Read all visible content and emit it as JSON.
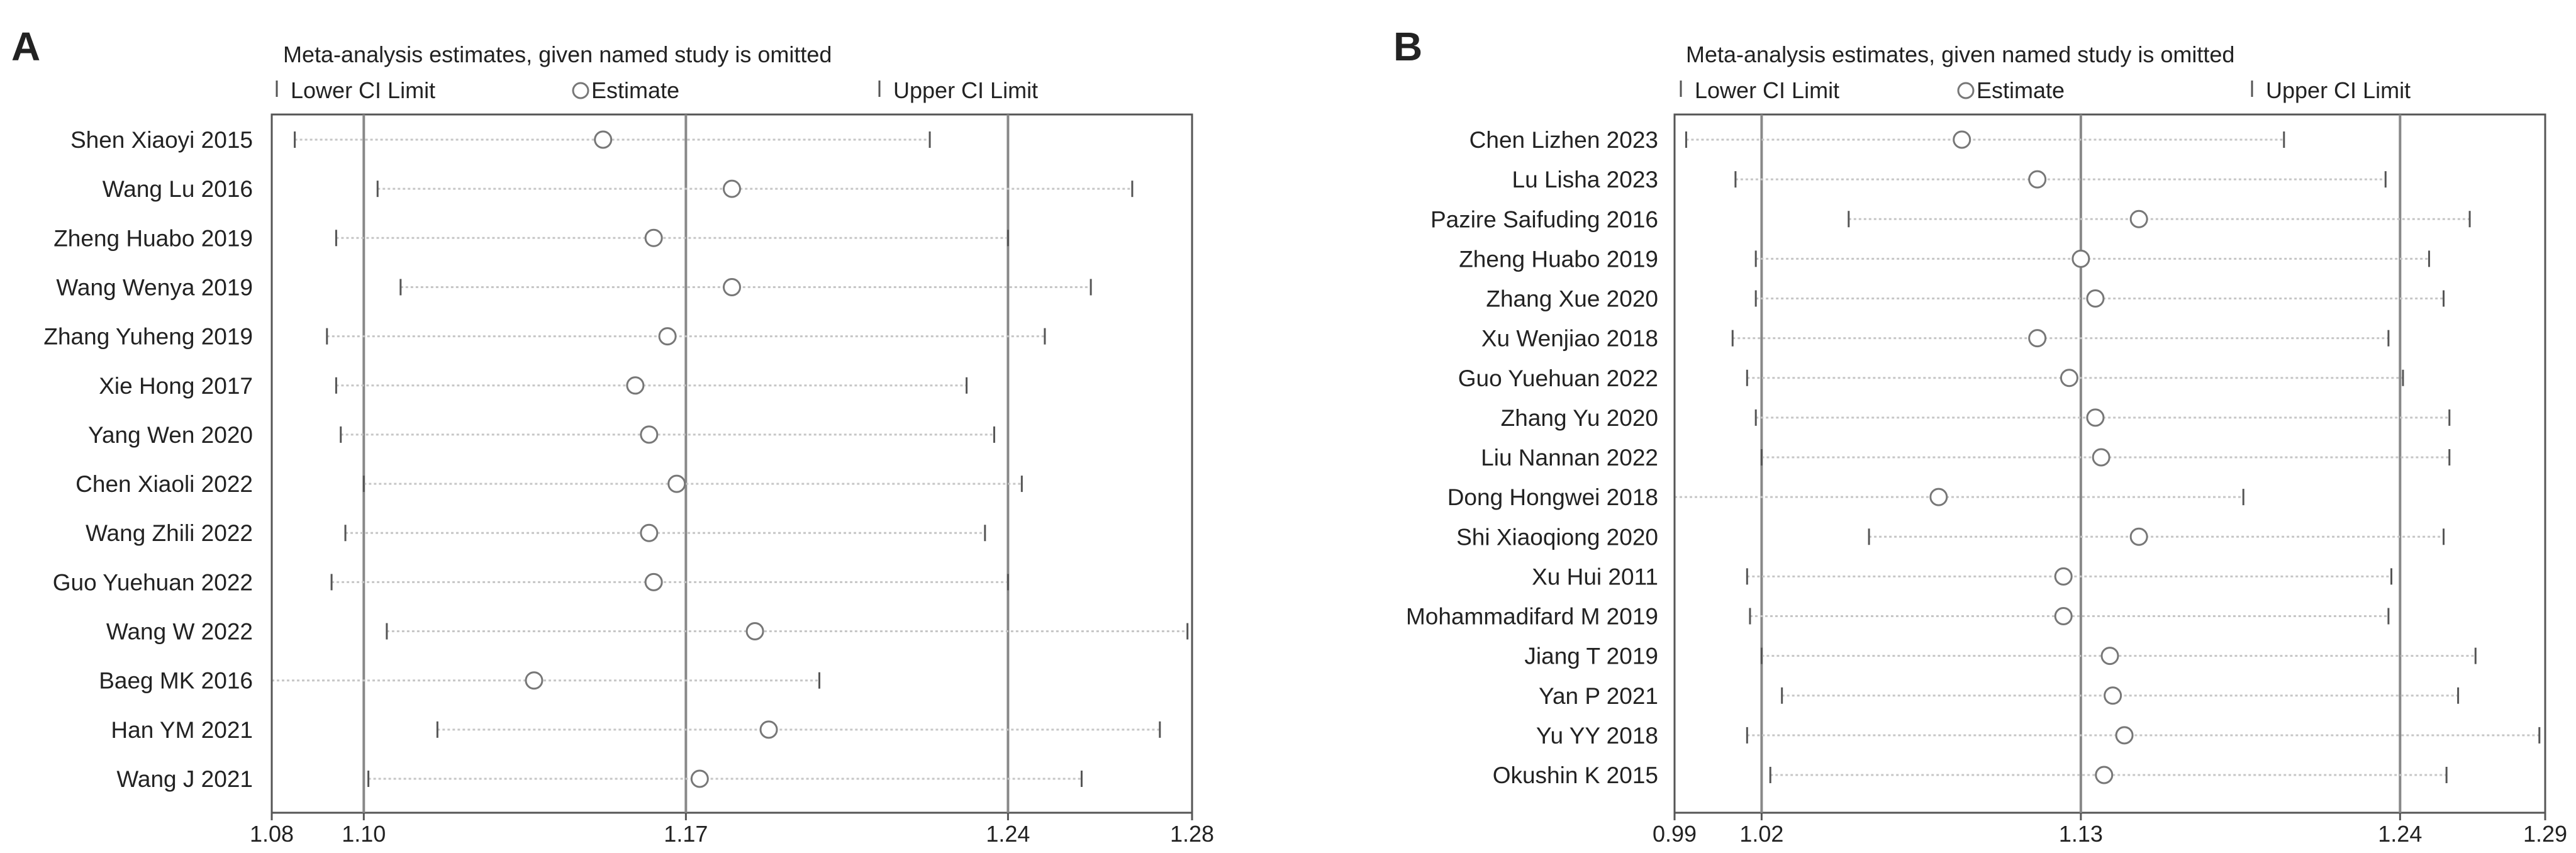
{
  "colors": {
    "frame": "#555555",
    "reference_line": "#888888",
    "ci_line": "#c6c6c6",
    "estimate_marker": "#777777",
    "text": "#222222"
  },
  "chart_data": [
    {
      "type": "scatter",
      "panel": "A",
      "title": "Meta-analysis estimates, given named study is omitted",
      "legend": [
        "Lower CI Limit",
        "Estimate",
        "Upper CI Limit"
      ],
      "xlim": [
        1.08,
        1.28
      ],
      "xticks": [
        "1.08",
        "1.10",
        "1.17",
        "1.24",
        "1.28"
      ],
      "reference_lines": [
        1.1,
        1.17,
        1.24
      ],
      "studies": [
        {
          "name": "Shen Xiaoyi 2015",
          "estimate": 1.152,
          "lower": 1.085,
          "upper": 1.223
        },
        {
          "name": "Wang Lu 2016",
          "estimate": 1.18,
          "lower": 1.103,
          "upper": 1.267
        },
        {
          "name": "Zheng Huabo 2019",
          "estimate": 1.163,
          "lower": 1.094,
          "upper": 1.24
        },
        {
          "name": "Wang Wenya 2019",
          "estimate": 1.18,
          "lower": 1.108,
          "upper": 1.258
        },
        {
          "name": "Zhang Yuheng 2019",
          "estimate": 1.166,
          "lower": 1.092,
          "upper": 1.248
        },
        {
          "name": "Xie Hong 2017",
          "estimate": 1.159,
          "lower": 1.094,
          "upper": 1.231
        },
        {
          "name": "Yang Wen 2020",
          "estimate": 1.162,
          "lower": 1.095,
          "upper": 1.237
        },
        {
          "name": "Chen Xiaoli 2022",
          "estimate": 1.168,
          "lower": 1.1,
          "upper": 1.243
        },
        {
          "name": "Wang Zhili 2022",
          "estimate": 1.162,
          "lower": 1.096,
          "upper": 1.235
        },
        {
          "name": "Guo Yuehuan 2022",
          "estimate": 1.163,
          "lower": 1.093,
          "upper": 1.24
        },
        {
          "name": "Wang W 2022",
          "estimate": 1.185,
          "lower": 1.105,
          "upper": 1.279
        },
        {
          "name": "Baeg MK 2016",
          "estimate": 1.137,
          "lower": 1.08,
          "upper": 1.199
        },
        {
          "name": "Han YM 2021",
          "estimate": 1.188,
          "lower": 1.116,
          "upper": 1.273
        },
        {
          "name": "Wang J 2021",
          "estimate": 1.173,
          "lower": 1.101,
          "upper": 1.256
        }
      ]
    },
    {
      "type": "scatter",
      "panel": "B",
      "title": "Meta-analysis estimates, given named study is omitted",
      "legend": [
        "Lower CI Limit",
        "Estimate",
        "Upper CI Limit"
      ],
      "xlim": [
        0.99,
        1.29
      ],
      "xticks": [
        "0.99",
        "1.02",
        "1.13",
        "1.24",
        "1.29"
      ],
      "reference_lines": [
        1.02,
        1.13,
        1.24
      ],
      "studies": [
        {
          "name": "Chen Lizhen 2023",
          "estimate": 1.089,
          "lower": 0.994,
          "upper": 1.2
        },
        {
          "name": "Lu Lisha 2023",
          "estimate": 1.115,
          "lower": 1.011,
          "upper": 1.235
        },
        {
          "name": "Pazire Saifuding 2016",
          "estimate": 1.15,
          "lower": 1.05,
          "upper": 1.264
        },
        {
          "name": "Zheng Huabo 2019",
          "estimate": 1.13,
          "lower": 1.018,
          "upper": 1.25
        },
        {
          "name": "Zhang Xue 2020",
          "estimate": 1.135,
          "lower": 1.018,
          "upper": 1.255
        },
        {
          "name": "Xu Wenjiao 2018",
          "estimate": 1.115,
          "lower": 1.01,
          "upper": 1.236
        },
        {
          "name": "Guo Yuehuan 2022",
          "estimate": 1.126,
          "lower": 1.015,
          "upper": 1.241
        },
        {
          "name": "Zhang Yu 2020",
          "estimate": 1.135,
          "lower": 1.018,
          "upper": 1.257
        },
        {
          "name": "Liu Nannan 2022",
          "estimate": 1.137,
          "lower": 1.02,
          "upper": 1.257
        },
        {
          "name": "Dong Hongwei 2018",
          "estimate": 1.081,
          "lower": 0.99,
          "upper": 1.186
        },
        {
          "name": "Shi Xiaoqiong 2020",
          "estimate": 1.15,
          "lower": 1.057,
          "upper": 1.255
        },
        {
          "name": "Xu Hui 2011",
          "estimate": 1.124,
          "lower": 1.015,
          "upper": 1.237
        },
        {
          "name": "Mohammadifard M 2019",
          "estimate": 1.124,
          "lower": 1.016,
          "upper": 1.236
        },
        {
          "name": "Jiang T 2019",
          "estimate": 1.14,
          "lower": 1.02,
          "upper": 1.266
        },
        {
          "name": "Yan P 2021",
          "estimate": 1.141,
          "lower": 1.027,
          "upper": 1.26
        },
        {
          "name": "Yu YY 2018",
          "estimate": 1.145,
          "lower": 1.015,
          "upper": 1.288
        },
        {
          "name": "Okushin K 2015",
          "estimate": 1.138,
          "lower": 1.023,
          "upper": 1.256
        }
      ]
    }
  ]
}
